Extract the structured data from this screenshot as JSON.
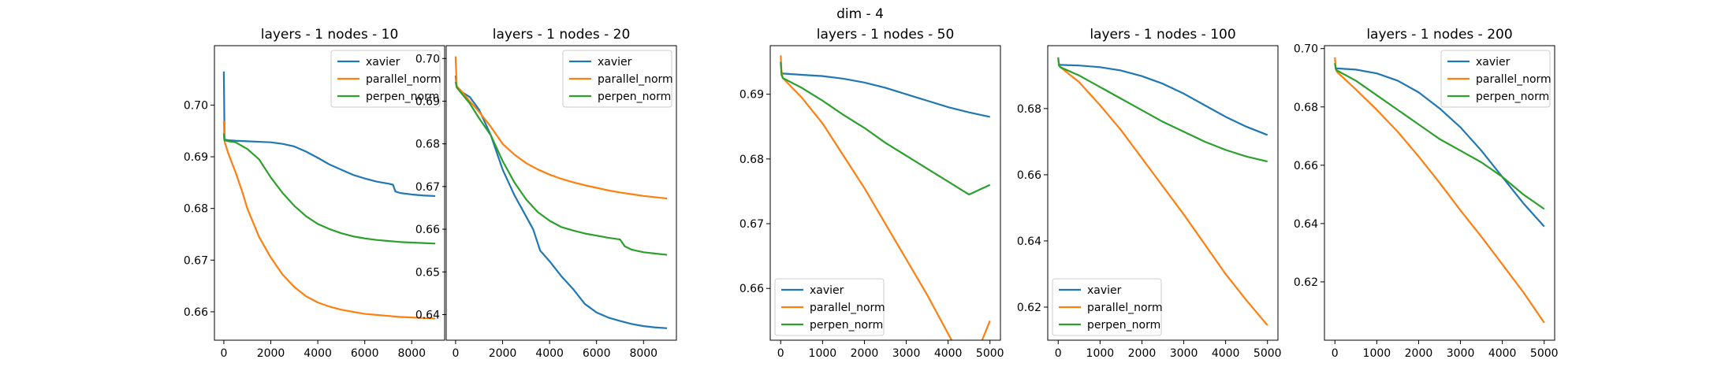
{
  "suptitle": "dim - 4",
  "colors": {
    "xavier": "#1f77b4",
    "parallel_norm": "#ff7f0e",
    "perpen_norm": "#2ca02c"
  },
  "chart_data": [
    {
      "type": "line",
      "title": "layers - 1 nodes - 10",
      "xlim": [
        -400,
        9400
      ],
      "ylim": [
        0.6545,
        0.7115
      ],
      "xticks": [
        0,
        2000,
        4000,
        6000,
        8000
      ],
      "yticks": [
        0.66,
        0.67,
        0.68,
        0.69,
        0.7
      ],
      "legend_loc": "upper right",
      "series": [
        {
          "name": "xavier",
          "x": [
            0,
            30,
            60,
            200,
            500,
            1000,
            1500,
            2000,
            2500,
            3000,
            3500,
            4000,
            4500,
            5000,
            5500,
            6000,
            6500,
            7000,
            7200,
            7300,
            7500,
            8000,
            8500,
            9000
          ],
          "y": [
            0.7065,
            0.6935,
            0.6933,
            0.6932,
            0.6931,
            0.693,
            0.6929,
            0.6928,
            0.6925,
            0.692,
            0.691,
            0.6898,
            0.6885,
            0.6875,
            0.6865,
            0.6858,
            0.6852,
            0.6848,
            0.6846,
            0.6833,
            0.683,
            0.6827,
            0.6825,
            0.6824
          ]
        },
        {
          "name": "parallel_norm",
          "x": [
            0,
            20,
            40,
            200,
            500,
            800,
            1000,
            1500,
            2000,
            2500,
            3000,
            3500,
            4000,
            4500,
            5000,
            5500,
            6000,
            6500,
            7000,
            7500,
            8000,
            8500,
            9000
          ],
          "y": [
            0.697,
            0.6935,
            0.6928,
            0.6905,
            0.687,
            0.683,
            0.68,
            0.6745,
            0.6705,
            0.6672,
            0.6648,
            0.663,
            0.6618,
            0.661,
            0.6604,
            0.66,
            0.6596,
            0.6594,
            0.6592,
            0.659,
            0.6589,
            0.6588,
            0.6587
          ]
        },
        {
          "name": "perpen_norm",
          "x": [
            0,
            20,
            200,
            500,
            1000,
            1500,
            2000,
            2500,
            3000,
            3500,
            4000,
            4500,
            5000,
            5500,
            6000,
            6500,
            7000,
            7500,
            8000,
            8500,
            9000
          ],
          "y": [
            0.6945,
            0.6932,
            0.693,
            0.6928,
            0.6915,
            0.6895,
            0.686,
            0.683,
            0.6805,
            0.6785,
            0.677,
            0.676,
            0.6752,
            0.6746,
            0.6742,
            0.6739,
            0.6737,
            0.6735,
            0.6734,
            0.6733,
            0.6732
          ]
        }
      ]
    },
    {
      "type": "line",
      "title": "layers - 1 nodes - 20",
      "xlim": [
        -400,
        9400
      ],
      "ylim": [
        0.634,
        0.703
      ],
      "xticks": [
        0,
        2000,
        4000,
        6000,
        8000
      ],
      "yticks": [
        0.64,
        0.65,
        0.66,
        0.67,
        0.68,
        0.69,
        0.7
      ],
      "legend_loc": "upper right",
      "series": [
        {
          "name": "xavier",
          "x": [
            0,
            50,
            300,
            600,
            1000,
            1500,
            2000,
            2500,
            3000,
            3300,
            3600,
            4000,
            4500,
            5000,
            5500,
            6000,
            6500,
            7000,
            7500,
            8000,
            8500,
            9000
          ],
          "y": [
            0.696,
            0.6932,
            0.692,
            0.691,
            0.688,
            0.682,
            0.674,
            0.668,
            0.663,
            0.66,
            0.655,
            0.6525,
            0.649,
            0.646,
            0.6425,
            0.6405,
            0.6393,
            0.6385,
            0.6378,
            0.6373,
            0.637,
            0.6368
          ]
        },
        {
          "name": "parallel_norm",
          "x": [
            0,
            30,
            50,
            300,
            600,
            1000,
            1500,
            2000,
            2500,
            3000,
            3500,
            4000,
            4500,
            5000,
            5500,
            6000,
            6500,
            7000,
            7500,
            8000,
            8500,
            9000
          ],
          "y": [
            0.7005,
            0.696,
            0.6935,
            0.692,
            0.69,
            0.6875,
            0.684,
            0.68,
            0.6775,
            0.6755,
            0.674,
            0.6728,
            0.6718,
            0.671,
            0.6703,
            0.6697,
            0.6691,
            0.6686,
            0.6682,
            0.6678,
            0.6675,
            0.6672
          ]
        },
        {
          "name": "perpen_norm",
          "x": [
            0,
            50,
            300,
            600,
            1000,
            1500,
            2000,
            2500,
            3000,
            3500,
            4000,
            4500,
            5000,
            5500,
            6000,
            6500,
            7000,
            7200,
            7500,
            8000,
            8500,
            9000
          ],
          "y": [
            0.6945,
            0.6932,
            0.6915,
            0.6895,
            0.686,
            0.682,
            0.676,
            0.671,
            0.667,
            0.664,
            0.662,
            0.6605,
            0.6597,
            0.659,
            0.6585,
            0.658,
            0.6576,
            0.656,
            0.6552,
            0.6546,
            0.6543,
            0.654
          ]
        }
      ]
    },
    {
      "type": "line",
      "title": "layers - 1 nodes - 50",
      "xlim": [
        -250,
        5250
      ],
      "ylim": [
        0.652,
        0.6975
      ],
      "xticks": [
        0,
        1000,
        2000,
        3000,
        4000,
        5000
      ],
      "yticks": [
        0.66,
        0.67,
        0.68,
        0.69
      ],
      "legend_loc": "lower left",
      "series": [
        {
          "name": "xavier",
          "x": [
            0,
            50,
            500,
            1000,
            1500,
            2000,
            2500,
            3000,
            3500,
            4000,
            4500,
            5000
          ],
          "y": [
            0.6935,
            0.6932,
            0.693,
            0.6928,
            0.6924,
            0.6918,
            0.691,
            0.69,
            0.689,
            0.688,
            0.6872,
            0.6865
          ]
        },
        {
          "name": "parallel_norm",
          "x": [
            0,
            20,
            50,
            500,
            1000,
            1500,
            2000,
            2500,
            3000,
            3500,
            4000,
            4500,
            5000
          ],
          "y": [
            0.696,
            0.6935,
            0.6925,
            0.6895,
            0.6855,
            0.6805,
            0.6755,
            0.67,
            0.6645,
            0.659,
            0.653,
            0.647,
            0.655
          ]
        },
        {
          "name": "perpen_norm",
          "x": [
            0,
            20,
            50,
            500,
            1000,
            1500,
            2000,
            2500,
            3000,
            3500,
            4000,
            4500,
            5000
          ],
          "y": [
            0.695,
            0.693,
            0.6925,
            0.691,
            0.689,
            0.6868,
            0.6848,
            0.6825,
            0.6805,
            0.6785,
            0.6765,
            0.6745,
            0.676
          ]
        }
      ]
    },
    {
      "type": "line",
      "title": "layers - 1 nodes - 100",
      "xlim": [
        -250,
        5250
      ],
      "ylim": [
        0.61,
        0.699
      ],
      "xticks": [
        0,
        1000,
        2000,
        3000,
        4000,
        5000
      ],
      "yticks": [
        0.62,
        0.64,
        0.66,
        0.68
      ],
      "legend_loc": "lower left",
      "series": [
        {
          "name": "xavier",
          "x": [
            0,
            50,
            500,
            1000,
            1500,
            2000,
            2500,
            3000,
            3500,
            4000,
            4500,
            5000
          ],
          "y": [
            0.6935,
            0.6932,
            0.693,
            0.6925,
            0.6915,
            0.6898,
            0.6875,
            0.6845,
            0.681,
            0.6775,
            0.6745,
            0.672
          ]
        },
        {
          "name": "parallel_norm",
          "x": [
            0,
            20,
            50,
            500,
            1000,
            1500,
            2000,
            2500,
            3000,
            3500,
            4000,
            4500,
            5000
          ],
          "y": [
            0.695,
            0.693,
            0.6925,
            0.688,
            0.681,
            0.6735,
            0.665,
            0.6565,
            0.648,
            0.639,
            0.63,
            0.622,
            0.6145
          ]
        },
        {
          "name": "perpen_norm",
          "x": [
            0,
            20,
            50,
            500,
            1000,
            1500,
            2000,
            2500,
            3000,
            3500,
            4000,
            4500,
            5000
          ],
          "y": [
            0.6955,
            0.693,
            0.6925,
            0.69,
            0.6865,
            0.683,
            0.6795,
            0.676,
            0.673,
            0.67,
            0.6675,
            0.6655,
            0.664
          ]
        }
      ]
    },
    {
      "type": "line",
      "title": "layers - 1 nodes - 200",
      "xlim": [
        -250,
        5250
      ],
      "ylim": [
        0.6,
        0.701
      ],
      "xticks": [
        0,
        1000,
        2000,
        3000,
        4000,
        5000
      ],
      "yticks": [
        0.62,
        0.64,
        0.66,
        0.68,
        0.7
      ],
      "legend_loc": "upper right",
      "series": [
        {
          "name": "xavier",
          "x": [
            0,
            50,
            500,
            1000,
            1500,
            2000,
            2500,
            3000,
            3500,
            4000,
            4500,
            5000
          ],
          "y": [
            0.6935,
            0.6932,
            0.6928,
            0.6915,
            0.689,
            0.685,
            0.6795,
            0.673,
            0.665,
            0.656,
            0.647,
            0.639
          ]
        },
        {
          "name": "parallel_norm",
          "x": [
            0,
            20,
            50,
            500,
            1000,
            1500,
            2000,
            2500,
            3000,
            3500,
            4000,
            4500,
            5000
          ],
          "y": [
            0.697,
            0.693,
            0.692,
            0.686,
            0.679,
            0.6715,
            0.663,
            0.654,
            0.6445,
            0.6355,
            0.626,
            0.6165,
            0.606
          ]
        },
        {
          "name": "perpen_norm",
          "x": [
            0,
            20,
            50,
            500,
            1000,
            1500,
            2000,
            2500,
            3000,
            3500,
            4000,
            4500,
            5000
          ],
          "y": [
            0.695,
            0.693,
            0.6925,
            0.689,
            0.684,
            0.679,
            0.674,
            0.669,
            0.665,
            0.661,
            0.656,
            0.65,
            0.645
          ]
        }
      ]
    }
  ]
}
